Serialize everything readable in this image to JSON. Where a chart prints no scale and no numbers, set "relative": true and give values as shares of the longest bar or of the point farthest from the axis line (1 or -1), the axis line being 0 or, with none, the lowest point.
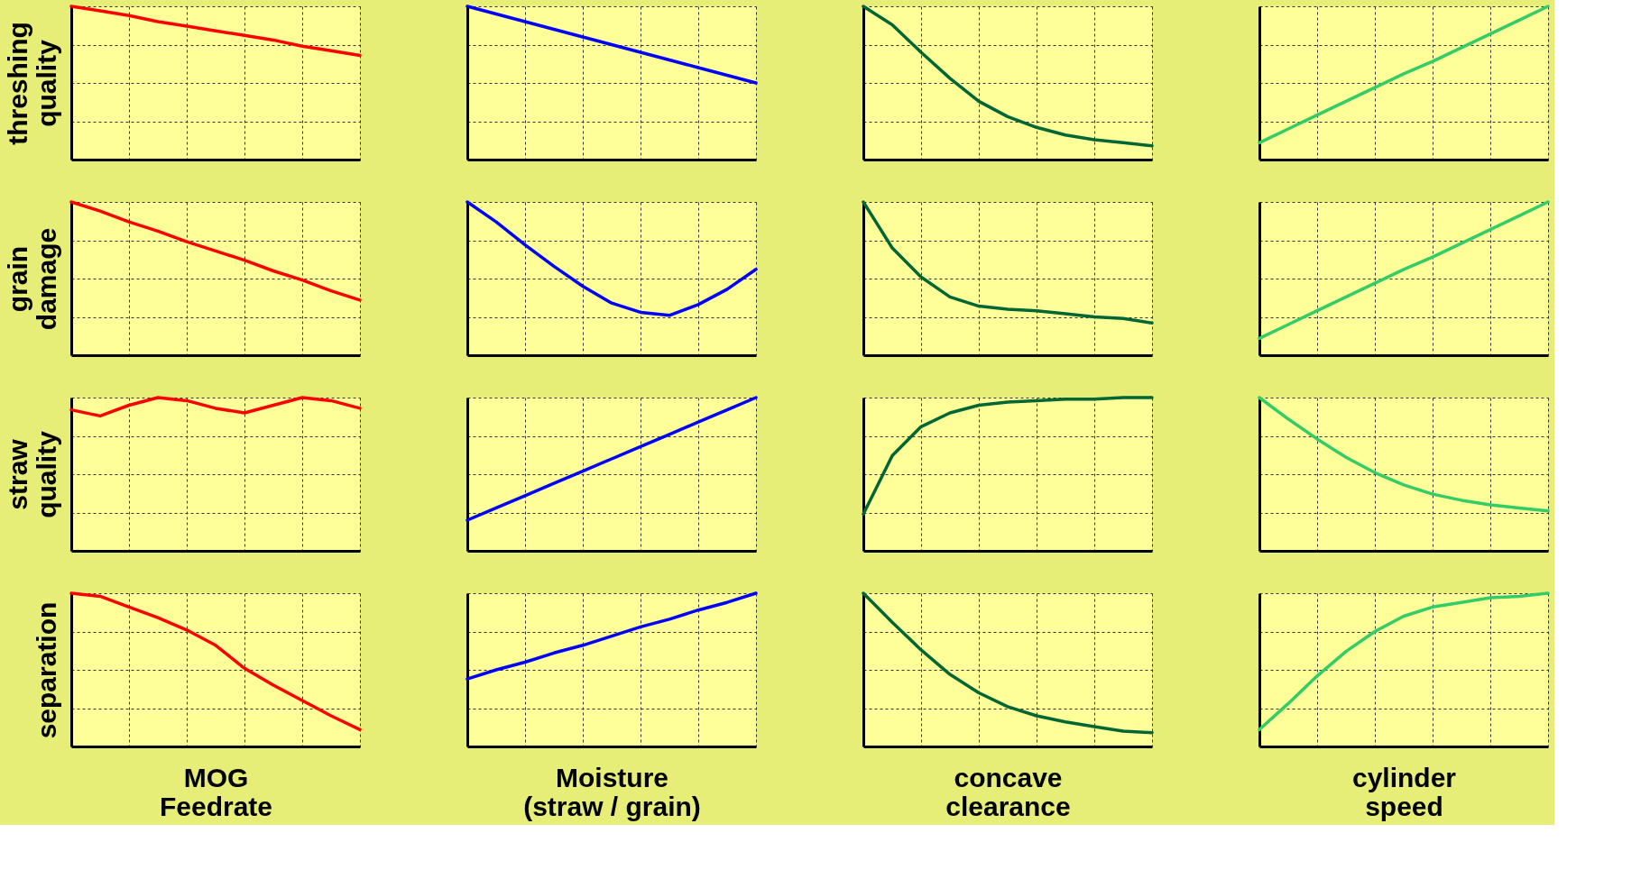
{
  "chart_data": [
    {
      "type": "line",
      "relative": true,
      "ylabel": "threshing quality",
      "categories": [
        null,
        null,
        null,
        null,
        null,
        null,
        null,
        null,
        null,
        null,
        null
      ],
      "series": [
        {
          "color": "#ff0000",
          "values": [
            1,
            0.97,
            0.94,
            0.9,
            0.87,
            0.84,
            0.81,
            0.78,
            0.74,
            0.71,
            0.68
          ]
        }
      ],
      "grid": true,
      "tick_labels": false
    },
    {
      "type": "line",
      "relative": true,
      "categories": [
        null,
        null,
        null,
        null,
        null,
        null,
        null,
        null,
        null,
        null,
        null
      ],
      "series": [
        {
          "color": "#0000ff",
          "values": [
            1,
            0.95,
            0.9,
            0.85,
            0.8,
            0.75,
            0.7,
            0.65,
            0.6,
            0.55,
            0.5
          ]
        }
      ],
      "grid": true,
      "tick_labels": false
    },
    {
      "type": "line",
      "relative": true,
      "categories": [
        null,
        null,
        null,
        null,
        null,
        null,
        null,
        null,
        null,
        null,
        null
      ],
      "series": [
        {
          "color": "#006633",
          "values": [
            1,
            0.88,
            0.7,
            0.53,
            0.38,
            0.28,
            0.21,
            0.16,
            0.13,
            0.11,
            0.09
          ]
        }
      ],
      "grid": true,
      "tick_labels": false
    },
    {
      "type": "line",
      "relative": true,
      "categories": [
        null,
        null,
        null,
        null,
        null,
        null,
        null,
        null,
        null,
        null,
        null
      ],
      "series": [
        {
          "color": "#33cc66",
          "values": [
            0.11,
            0.2,
            0.29,
            0.38,
            0.47,
            0.56,
            0.64,
            0.73,
            0.82,
            0.91,
            1
          ]
        }
      ],
      "grid": true,
      "tick_labels": false
    },
    {
      "type": "line",
      "relative": true,
      "ylabel": "grain damage",
      "categories": [
        null,
        null,
        null,
        null,
        null,
        null,
        null,
        null,
        null,
        null,
        null
      ],
      "series": [
        {
          "color": "#ff0000",
          "values": [
            1,
            0.94,
            0.87,
            0.81,
            0.74,
            0.68,
            0.62,
            0.55,
            0.49,
            0.42,
            0.36
          ]
        }
      ],
      "grid": true,
      "tick_labels": false
    },
    {
      "type": "line",
      "relative": true,
      "categories": [
        null,
        null,
        null,
        null,
        null,
        null,
        null,
        null,
        null,
        null,
        null
      ],
      "series": [
        {
          "color": "#0000ff",
          "values": [
            1,
            0.87,
            0.72,
            0.58,
            0.45,
            0.34,
            0.28,
            0.26,
            0.33,
            0.43,
            0.56
          ]
        }
      ],
      "grid": true,
      "tick_labels": false
    },
    {
      "type": "line",
      "relative": true,
      "categories": [
        null,
        null,
        null,
        null,
        null,
        null,
        null,
        null,
        null,
        null,
        null
      ],
      "series": [
        {
          "color": "#006633",
          "values": [
            1,
            0.7,
            0.51,
            0.38,
            0.32,
            0.3,
            0.29,
            0.27,
            0.25,
            0.24,
            0.21
          ]
        }
      ],
      "grid": true,
      "tick_labels": false
    },
    {
      "type": "line",
      "relative": true,
      "categories": [
        null,
        null,
        null,
        null,
        null,
        null,
        null,
        null,
        null,
        null,
        null
      ],
      "series": [
        {
          "color": "#33cc66",
          "values": [
            0.11,
            0.2,
            0.29,
            0.38,
            0.47,
            0.56,
            0.64,
            0.73,
            0.82,
            0.91,
            1
          ]
        }
      ],
      "grid": true,
      "tick_labels": false
    },
    {
      "type": "line",
      "relative": true,
      "ylabel": "straw quality",
      "categories": [
        null,
        null,
        null,
        null,
        null,
        null,
        null,
        null,
        null,
        null,
        null
      ],
      "series": [
        {
          "color": "#ff0000",
          "values": [
            0.92,
            0.88,
            0.95,
            1,
            0.98,
            0.93,
            0.9,
            0.95,
            1,
            0.98,
            0.93
          ]
        }
      ],
      "grid": true,
      "tick_labels": false
    },
    {
      "type": "line",
      "relative": true,
      "categories": [
        null,
        null,
        null,
        null,
        null,
        null,
        null,
        null,
        null,
        null,
        null
      ],
      "series": [
        {
          "color": "#0000ff",
          "values": [
            0.2,
            0.28,
            0.36,
            0.44,
            0.52,
            0.6,
            0.68,
            0.76,
            0.84,
            0.92,
            1
          ]
        }
      ],
      "grid": true,
      "tick_labels": false
    },
    {
      "type": "line",
      "relative": true,
      "categories": [
        null,
        null,
        null,
        null,
        null,
        null,
        null,
        null,
        null,
        null,
        null
      ],
      "series": [
        {
          "color": "#006633",
          "values": [
            0.24,
            0.62,
            0.81,
            0.9,
            0.95,
            0.97,
            0.98,
            0.99,
            0.99,
            1,
            1
          ]
        }
      ],
      "grid": true,
      "tick_labels": false
    },
    {
      "type": "line",
      "relative": true,
      "categories": [
        null,
        null,
        null,
        null,
        null,
        null,
        null,
        null,
        null,
        null,
        null
      ],
      "series": [
        {
          "color": "#33cc66",
          "values": [
            1,
            0.86,
            0.73,
            0.61,
            0.51,
            0.43,
            0.37,
            0.33,
            0.3,
            0.28,
            0.26
          ]
        }
      ],
      "grid": true,
      "tick_labels": false
    },
    {
      "type": "line",
      "relative": true,
      "ylabel": "separation",
      "xlabel": "MOG Feedrate",
      "categories": [
        null,
        null,
        null,
        null,
        null,
        null,
        null,
        null,
        null,
        null,
        null
      ],
      "series": [
        {
          "color": "#ff0000",
          "values": [
            1,
            0.98,
            0.91,
            0.84,
            0.76,
            0.66,
            0.51,
            0.4,
            0.3,
            0.2,
            0.11
          ]
        }
      ],
      "grid": true,
      "tick_labels": false
    },
    {
      "type": "line",
      "relative": true,
      "xlabel": "Moisture (straw / grain)",
      "categories": [
        null,
        null,
        null,
        null,
        null,
        null,
        null,
        null,
        null,
        null,
        null
      ],
      "series": [
        {
          "color": "#0000ff",
          "values": [
            0.44,
            0.5,
            0.55,
            0.61,
            0.66,
            0.72,
            0.78,
            0.83,
            0.89,
            0.94,
            1
          ]
        }
      ],
      "grid": true,
      "tick_labels": false
    },
    {
      "type": "line",
      "relative": true,
      "xlabel": "concave clearance",
      "categories": [
        null,
        null,
        null,
        null,
        null,
        null,
        null,
        null,
        null,
        null,
        null
      ],
      "series": [
        {
          "color": "#006633",
          "values": [
            1,
            0.81,
            0.63,
            0.47,
            0.35,
            0.26,
            0.2,
            0.16,
            0.13,
            0.1,
            0.09
          ]
        }
      ],
      "grid": true,
      "tick_labels": false
    },
    {
      "type": "line",
      "relative": true,
      "xlabel": "cylinder speed",
      "categories": [
        null,
        null,
        null,
        null,
        null,
        null,
        null,
        null,
        null,
        null,
        null
      ],
      "series": [
        {
          "color": "#33cc66",
          "values": [
            0.11,
            0.28,
            0.46,
            0.62,
            0.75,
            0.85,
            0.91,
            0.94,
            0.97,
            0.98,
            1
          ]
        }
      ],
      "grid": true,
      "tick_labels": false
    }
  ]
}
